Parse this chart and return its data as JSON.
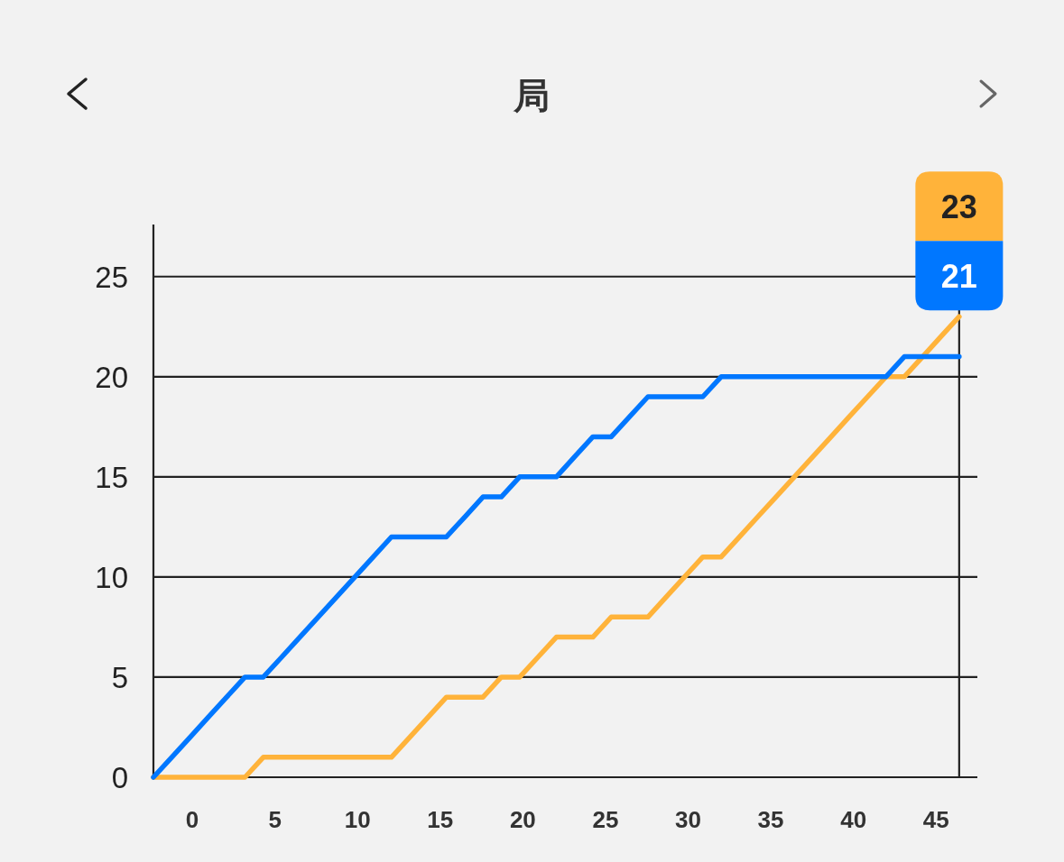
{
  "chart_data": {
    "type": "line",
    "title": "局",
    "x": [
      -2.35,
      -1.24,
      -0.13,
      0.97,
      2.08,
      3.19,
      4.3,
      5.41,
      6.51,
      7.62,
      8.73,
      9.84,
      10.95,
      12.05,
      13.16,
      14.27,
      15.38,
      16.49,
      17.59,
      18.7,
      19.81,
      20.92,
      22.03,
      23.13,
      24.24,
      25.35,
      26.46,
      27.57,
      28.67,
      29.78,
      30.89,
      32.0,
      33.11,
      34.21,
      35.32,
      36.43,
      37.54,
      38.65,
      39.75,
      40.86,
      41.97,
      43.08,
      44.19,
      45.29,
      46.4
    ],
    "series": [
      {
        "color": "#0077ff",
        "values": [
          0,
          1,
          2,
          3,
          4,
          5,
          5,
          6,
          7,
          8,
          9,
          10,
          11,
          12,
          12,
          12,
          12,
          13,
          14,
          14,
          15,
          15,
          15,
          16,
          17,
          17,
          18,
          19,
          19,
          19,
          19,
          20,
          20,
          20,
          20,
          20,
          20,
          20,
          20,
          20,
          20,
          21,
          21,
          21,
          21
        ]
      },
      {
        "color": "#ffb33a",
        "values": [
          0,
          0,
          0,
          0,
          0,
          0,
          1,
          1,
          1,
          1,
          1,
          1,
          1,
          1,
          2,
          3,
          4,
          4,
          4,
          5,
          5,
          6,
          7,
          7,
          7,
          8,
          8,
          8,
          9,
          10,
          11,
          11,
          12,
          13,
          14,
          15,
          16,
          17,
          18,
          19,
          20,
          20,
          21,
          22,
          23
        ]
      }
    ],
    "xlim": [
      -2.35,
      47.5
    ],
    "xticks": [
      0,
      5,
      10,
      15,
      20,
      25,
      30,
      35,
      40,
      45
    ],
    "ylim": [
      0,
      27.6
    ],
    "yticks": [
      0,
      5,
      10,
      15,
      20,
      25
    ],
    "grid": "y",
    "ref_lines": [
      {
        "axis": "x",
        "value": 46.4,
        "color": "#222222"
      }
    ],
    "annotations": [
      {
        "text": "23",
        "x": 46.4,
        "y": 23
      },
      {
        "text": "21",
        "x": 46.4,
        "y": 21
      }
    ]
  }
}
